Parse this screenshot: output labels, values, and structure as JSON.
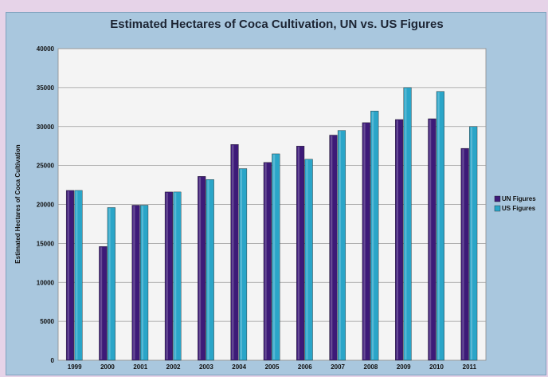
{
  "chart_data": {
    "type": "bar",
    "title": "Estimated Hectares of Coca Cultivation, UN vs. US Figures",
    "xlabel": "",
    "ylabel": "Estimated Hectares of Coca Cultivation",
    "ylim": [
      0,
      40000
    ],
    "yticks": [
      "0",
      "5000",
      "10000",
      "15000",
      "20000",
      "25000",
      "30000",
      "35000",
      "40000"
    ],
    "categories": [
      "1999",
      "2000",
      "2001",
      "2002",
      "2003",
      "2004",
      "2005",
      "2006",
      "2007",
      "2008",
      "2009",
      "2010",
      "2011"
    ],
    "series": [
      {
        "name": "UN Figures",
        "color": "#3d1a78",
        "values": [
          21800,
          14600,
          19900,
          21600,
          23600,
          27700,
          25400,
          27500,
          28900,
          30500,
          30900,
          31000,
          27200
        ]
      },
      {
        "name": "US Figures",
        "color": "#2aa5c8",
        "values": [
          21800,
          19600,
          19900,
          21600,
          23200,
          24600,
          26500,
          25800,
          29500,
          32000,
          35000,
          34500,
          30000
        ]
      }
    ],
    "grid": true,
    "legend_position": "right"
  }
}
